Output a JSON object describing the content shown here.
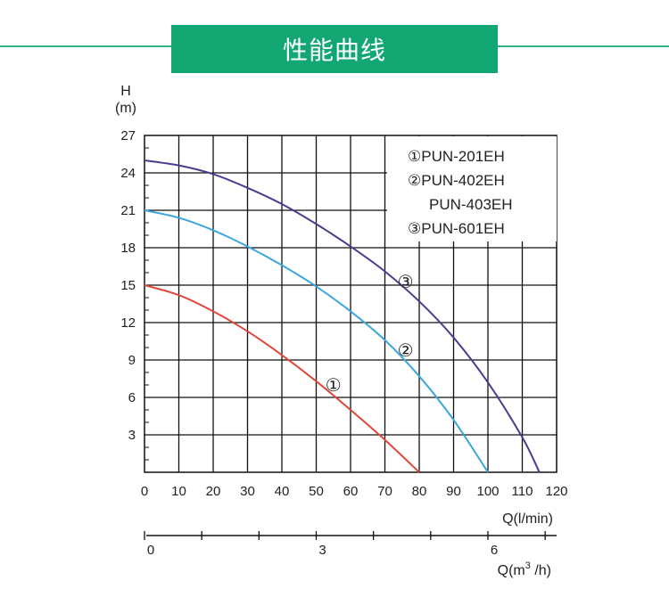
{
  "header": {
    "title": "性能曲线"
  },
  "chart_data": {
    "type": "line",
    "title": "性能曲线",
    "ylabel_top": "H",
    "ylabel_unit": "(m)",
    "xlabel": "Q(l/min)",
    "xlabel2": "Q(m³ /h)",
    "xlabel2_base": "Q(m",
    "xlabel2_sup": "3",
    "xlabel2_end": " /h)",
    "xlim": [
      0,
      120
    ],
    "ylim": [
      0,
      27
    ],
    "grid": true,
    "x_ticks": [
      "0",
      "10",
      "20",
      "30",
      "40",
      "50",
      "60",
      "70",
      "80",
      "90",
      "100",
      "110",
      "120"
    ],
    "y_ticks": [
      "27",
      "24",
      "21",
      "18",
      "15",
      "12",
      "9",
      "6",
      "3"
    ],
    "y_tick_values": [
      27,
      24,
      21,
      18,
      15,
      12,
      9,
      6,
      3
    ],
    "x2_ticks": [
      {
        "label": "0",
        "value": 0
      },
      {
        "label": "3",
        "value": 3
      },
      {
        "label": "6",
        "value": 6
      }
    ],
    "legend": {
      "position": "top-right",
      "entries": [
        "①PUN-201EH",
        "②PUN-402EH",
        "PUN-403EH",
        "③PUN-601EH"
      ]
    },
    "series": [
      {
        "label": "①",
        "color": "#e0463a",
        "x": [
          0,
          10,
          20,
          30,
          40,
          50,
          60,
          70,
          80
        ],
        "y": [
          15,
          14.2,
          12.9,
          11.3,
          9.4,
          7.3,
          5,
          2.6,
          0
        ]
      },
      {
        "label": "②",
        "color": "#3aa8dd",
        "x": [
          0,
          10,
          20,
          30,
          40,
          50,
          60,
          70,
          80,
          90,
          100
        ],
        "y": [
          21,
          20.4,
          19.4,
          18.1,
          16.6,
          14.9,
          12.9,
          10.6,
          7.7,
          4.2,
          0
        ]
      },
      {
        "label": "③",
        "color": "#4a3d8f",
        "x": [
          0,
          10,
          20,
          30,
          40,
          50,
          60,
          70,
          80,
          90,
          100,
          110,
          115
        ],
        "y": [
          25,
          24.6,
          23.9,
          22.8,
          21.5,
          19.9,
          18.1,
          16.1,
          13.7,
          10.8,
          7.2,
          2.8,
          0
        ]
      }
    ],
    "curve_labels": [
      {
        "text": "①",
        "x": 55,
        "y": 7
      },
      {
        "text": "②",
        "x": 76,
        "y": 9.8
      },
      {
        "text": "③",
        "x": 76,
        "y": 15.3
      }
    ]
  }
}
